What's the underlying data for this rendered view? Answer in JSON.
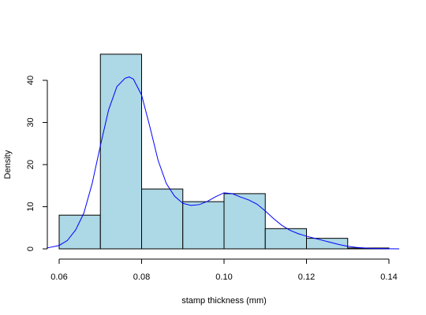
{
  "chart_data": {
    "type": "histogram",
    "title": "",
    "xlabel": "stamp thickness (mm)",
    "ylabel": "Density",
    "xlim": [
      0.06,
      0.14
    ],
    "ylim": [
      0,
      45
    ],
    "xticks": [
      "0.06",
      "0.08",
      "0.10",
      "0.12",
      "0.14"
    ],
    "yticks": [
      "0",
      "10",
      "20",
      "30",
      "40"
    ],
    "bins": [
      {
        "x0": 0.06,
        "x1": 0.07,
        "density": 8.0
      },
      {
        "x0": 0.07,
        "x1": 0.08,
        "density": 46.2
      },
      {
        "x0": 0.08,
        "x1": 0.09,
        "density": 14.2
      },
      {
        "x0": 0.09,
        "x1": 0.1,
        "density": 11.2
      },
      {
        "x0": 0.1,
        "x1": 0.11,
        "density": 13.1
      },
      {
        "x0": 0.11,
        "x1": 0.12,
        "density": 4.8
      },
      {
        "x0": 0.12,
        "x1": 0.13,
        "density": 2.5
      },
      {
        "x0": 0.13,
        "x1": 0.14,
        "density": 0.2
      }
    ],
    "density_curve": {
      "x": [
        0.057,
        0.06,
        0.062,
        0.064,
        0.066,
        0.068,
        0.07,
        0.072,
        0.074,
        0.076,
        0.077,
        0.078,
        0.08,
        0.082,
        0.084,
        0.086,
        0.088,
        0.09,
        0.092,
        0.094,
        0.096,
        0.098,
        0.1,
        0.102,
        0.104,
        0.106,
        0.108,
        0.11,
        0.112,
        0.114,
        0.116,
        0.118,
        0.12,
        0.122,
        0.124,
        0.126,
        0.128,
        0.13,
        0.132,
        0.134,
        0.136,
        0.138,
        0.14,
        0.1425
      ],
      "y": [
        0.2,
        0.8,
        2.0,
        4.5,
        8.5,
        15.5,
        24.5,
        33.0,
        38.5,
        40.5,
        40.8,
        40.3,
        36.5,
        29.0,
        21.0,
        15.5,
        12.5,
        10.8,
        10.3,
        10.5,
        11.3,
        12.4,
        13.3,
        13.1,
        12.3,
        11.6,
        10.6,
        9.0,
        7.2,
        5.6,
        4.4,
        3.6,
        3.0,
        2.5,
        2.0,
        1.5,
        1.0,
        0.6,
        0.35,
        0.2,
        0.1,
        0.05,
        0.02,
        0.0
      ]
    },
    "colors": {
      "bar_fill": "#add8e6",
      "bar_stroke": "#000000",
      "curve": "#0000ff",
      "axis": "#000000"
    },
    "grid": false,
    "legend": "none"
  }
}
